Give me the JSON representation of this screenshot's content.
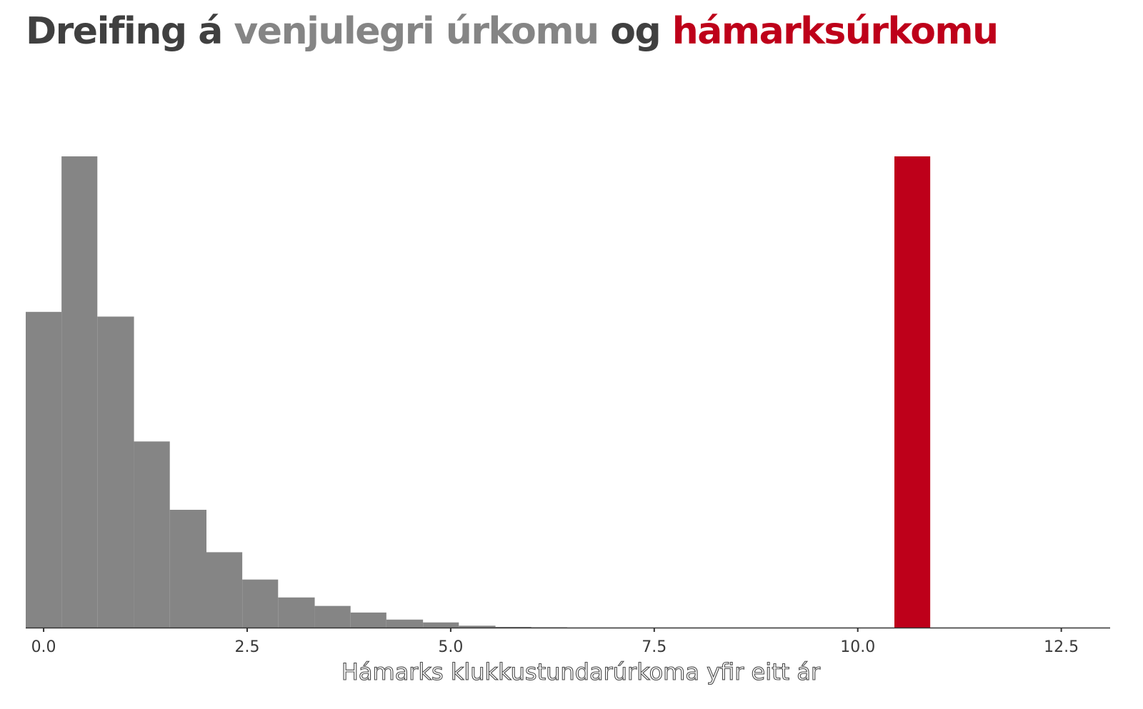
{
  "title": {
    "part1": "Dreifing á",
    "part2": "venjulegri úrkomu",
    "part3": "og",
    "part4": "hámarksúrkomu"
  },
  "colors": {
    "title_dark": "#404040",
    "normal": "#858585",
    "maximum": "#be001a",
    "axis": "#333333"
  },
  "chart_data": {
    "type": "bar",
    "title": "Dreifing á venjulegri úrkomu og hámarksúrkomu",
    "xlabel": "Hámarks klukkustundarúrkoma yfir eitt ár",
    "ylabel": "",
    "xlim": [
      -0.22,
      13.1
    ],
    "ylim": [
      0,
      1
    ],
    "x_ticks": [
      0,
      2.5,
      5,
      7.5,
      10,
      12.5
    ],
    "x_tick_labels": [
      "0.0",
      "2.5",
      "5.0",
      "7.5",
      "10.0",
      "12.5"
    ],
    "grid": false,
    "legend": "none",
    "series": [
      {
        "name": "venjulegri úrkomu",
        "color": "#858585",
        "bins": [
          {
            "x0": -0.22,
            "x1": 0.22,
            "value": 0.67
          },
          {
            "x0": 0.22,
            "x1": 0.66,
            "value": 1.0
          },
          {
            "x0": 0.66,
            "x1": 1.11,
            "value": 0.66
          },
          {
            "x0": 1.11,
            "x1": 1.55,
            "value": 0.395
          },
          {
            "x0": 1.55,
            "x1": 2.0,
            "value": 0.25
          },
          {
            "x0": 2.0,
            "x1": 2.44,
            "value": 0.16
          },
          {
            "x0": 2.44,
            "x1": 2.88,
            "value": 0.102
          },
          {
            "x0": 2.88,
            "x1": 3.33,
            "value": 0.064
          },
          {
            "x0": 3.33,
            "x1": 3.77,
            "value": 0.046
          },
          {
            "x0": 3.77,
            "x1": 4.21,
            "value": 0.032
          },
          {
            "x0": 4.21,
            "x1": 4.66,
            "value": 0.017
          },
          {
            "x0": 4.66,
            "x1": 5.1,
            "value": 0.011
          },
          {
            "x0": 5.1,
            "x1": 5.55,
            "value": 0.004
          },
          {
            "x0": 5.55,
            "x1": 5.99,
            "value": 0.0015
          },
          {
            "x0": 5.99,
            "x1": 6.43,
            "value": 0.0008
          }
        ]
      },
      {
        "name": "hámarksúrkomu",
        "color": "#be001a",
        "bins": [
          {
            "x0": 10.45,
            "x1": 10.89,
            "value": 1.0
          }
        ]
      }
    ]
  }
}
